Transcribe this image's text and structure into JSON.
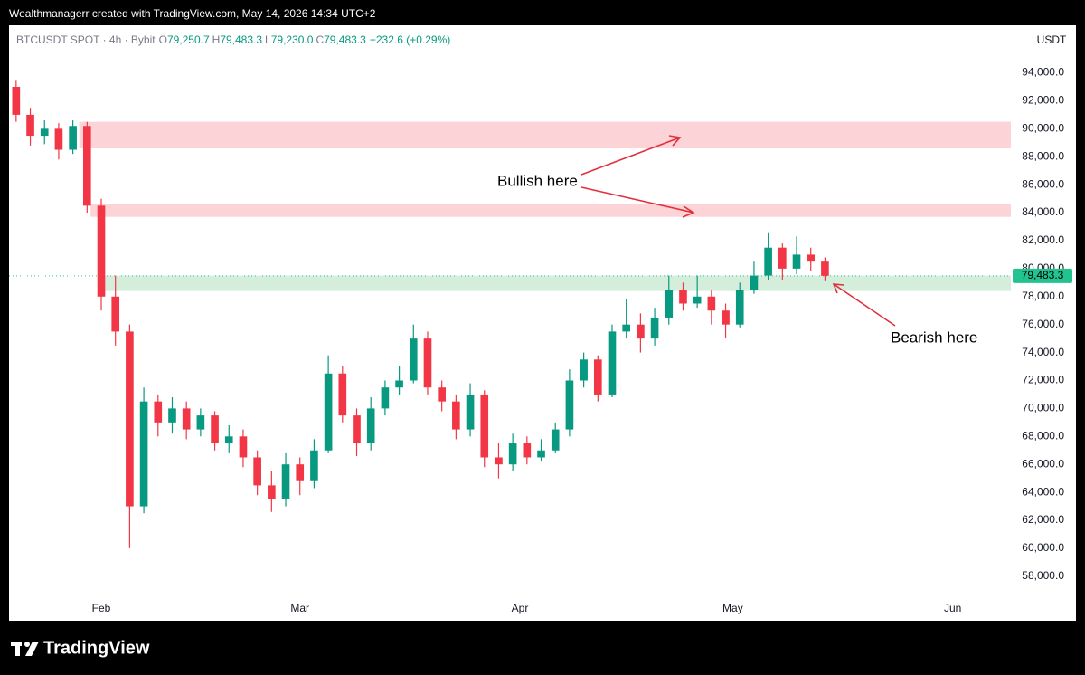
{
  "credit": "Wealthmanagerr created with TradingView.com, May 14, 2026 14:34 UTC+2",
  "brand": "TradingView",
  "symbol_line": {
    "symbol": "BTCUSDT SPOT · 4h · Bybit",
    "fields": [
      {
        "key": "O",
        "value": "79,250.7"
      },
      {
        "key": "H",
        "value": "79,483.3"
      },
      {
        "key": "L",
        "value": "79,230.0"
      },
      {
        "key": "C",
        "value": "79,483.3"
      }
    ],
    "change": "+232.6 (+0.29%)"
  },
  "currency": "USDT",
  "annotations": [
    "Bullish here",
    "Bearish here"
  ],
  "chart_data": {
    "type": "candlestick",
    "up_color": "#089981",
    "down_color": "#f23645",
    "x": [
      20,
      22,
      24,
      26,
      28,
      30,
      32,
      34,
      36,
      38,
      40,
      42,
      44,
      46,
      48,
      50,
      52,
      54,
      56,
      58,
      60,
      62,
      64,
      66,
      68,
      70,
      72,
      74,
      76,
      78,
      80,
      82,
      84,
      86,
      88,
      90,
      92,
      94,
      96,
      98,
      100,
      102,
      104,
      106,
      108,
      110,
      112,
      114,
      116,
      118,
      120,
      122,
      124,
      126,
      128,
      130,
      132,
      134
    ],
    "open": [
      93000,
      91000,
      89500,
      90000,
      88500,
      90200,
      84500,
      78000,
      75500,
      63000,
      70500,
      69000,
      70000,
      68500,
      69500,
      67500,
      68000,
      66500,
      64500,
      63500,
      66000,
      64800,
      67000,
      72500,
      69500,
      67500,
      70000,
      71500,
      72000,
      75000,
      71500,
      70500,
      68500,
      71000,
      66500,
      66000,
      67500,
      66500,
      67000,
      68500,
      72000,
      73500,
      71000,
      75500,
      76000,
      75000,
      76500,
      78500,
      77500,
      78000,
      77000,
      76000,
      78500,
      79500,
      81500,
      80000,
      81000,
      80500
    ],
    "high": [
      93500,
      91500,
      90600,
      90400,
      90600,
      90500,
      85000,
      79500,
      76000,
      71500,
      71000,
      70800,
      70500,
      70000,
      69800,
      68800,
      68500,
      67000,
      65500,
      66800,
      66500,
      67800,
      73800,
      73000,
      70000,
      70800,
      72000,
      73000,
      76000,
      75500,
      72000,
      71000,
      71800,
      71300,
      67500,
      68200,
      68000,
      67800,
      69000,
      72800,
      74000,
      73800,
      76000,
      77800,
      76800,
      77200,
      79500,
      79000,
      79500,
      78500,
      77500,
      79000,
      80500,
      82600,
      81800,
      82300,
      81500,
      80800
    ],
    "low": [
      90500,
      88800,
      88900,
      87800,
      88200,
      84000,
      77000,
      74500,
      60000,
      62500,
      68000,
      68200,
      67800,
      68000,
      67000,
      66800,
      65800,
      63800,
      62600,
      63000,
      63800,
      64300,
      66800,
      69000,
      66600,
      67000,
      69500,
      71000,
      71800,
      71000,
      69800,
      67800,
      68000,
      65800,
      65000,
      65500,
      66000,
      66200,
      66800,
      68000,
      71500,
      70500,
      70800,
      75000,
      74000,
      74500,
      76000,
      77000,
      77200,
      76000,
      75000,
      75800,
      78200,
      79200,
      79200,
      79600,
      79800,
      79100
    ],
    "close": [
      91000,
      89500,
      90000,
      88500,
      90200,
      84500,
      78000,
      75500,
      63000,
      70500,
      69000,
      70000,
      68500,
      69500,
      67500,
      68000,
      66500,
      64500,
      63500,
      66000,
      64800,
      67000,
      72500,
      69500,
      67500,
      70000,
      71500,
      72000,
      75000,
      71500,
      70500,
      68500,
      71000,
      66500,
      66000,
      67500,
      66500,
      67000,
      68500,
      72000,
      73500,
      71000,
      75500,
      76000,
      75000,
      76500,
      78500,
      77500,
      78000,
      77000,
      76000,
      78500,
      79500,
      81500,
      80000,
      81000,
      80500,
      79483.3
    ],
    "xlim": [
      19,
      160.2
    ],
    "xticks": [
      {
        "value": 32,
        "label": "Feb"
      },
      {
        "value": 60,
        "label": "Mar"
      },
      {
        "value": 91,
        "label": "Apr"
      },
      {
        "value": 121,
        "label": "May"
      },
      {
        "value": 152,
        "label": "Jun"
      }
    ],
    "ylim": [
      56500,
      97400
    ],
    "yticks": [
      {
        "value": 58000,
        "label": "58,000.0"
      },
      {
        "value": 60000,
        "label": "60,000.0"
      },
      {
        "value": 62000,
        "label": "62,000.0"
      },
      {
        "value": 64000,
        "label": "64,000.0"
      },
      {
        "value": 66000,
        "label": "66,000.0"
      },
      {
        "value": 68000,
        "label": "68,000.0"
      },
      {
        "value": 70000,
        "label": "70,000.0"
      },
      {
        "value": 72000,
        "label": "72,000.0"
      },
      {
        "value": 74000,
        "label": "74,000.0"
      },
      {
        "value": 76000,
        "label": "76,000.0"
      },
      {
        "value": 78000,
        "label": "78,000.0"
      },
      {
        "value": 80000,
        "label": "80,000.0"
      },
      {
        "value": 82000,
        "label": "82,000.0"
      },
      {
        "value": 84000,
        "label": "84,000.0"
      },
      {
        "value": 86000,
        "label": "86,000.0"
      },
      {
        "value": 88000,
        "label": "88,000.0"
      },
      {
        "value": 90000,
        "label": "90,000.0"
      },
      {
        "value": 92000,
        "label": "92,000.0"
      },
      {
        "value": 94000,
        "label": "94,000.0"
      }
    ],
    "zones": [
      {
        "from": 28.9,
        "low": 88600,
        "high": 90500,
        "color": "#fcd3d6"
      },
      {
        "from": 30.5,
        "low": 83700,
        "high": 84600,
        "color": "#fcd3d6"
      },
      {
        "from": 31.7,
        "low": 78400,
        "high": 79500,
        "color": "#d5eedb"
      }
    ],
    "last_price": {
      "value": 79483.3,
      "label": "79,483.3",
      "color": "#22c38e"
    }
  }
}
